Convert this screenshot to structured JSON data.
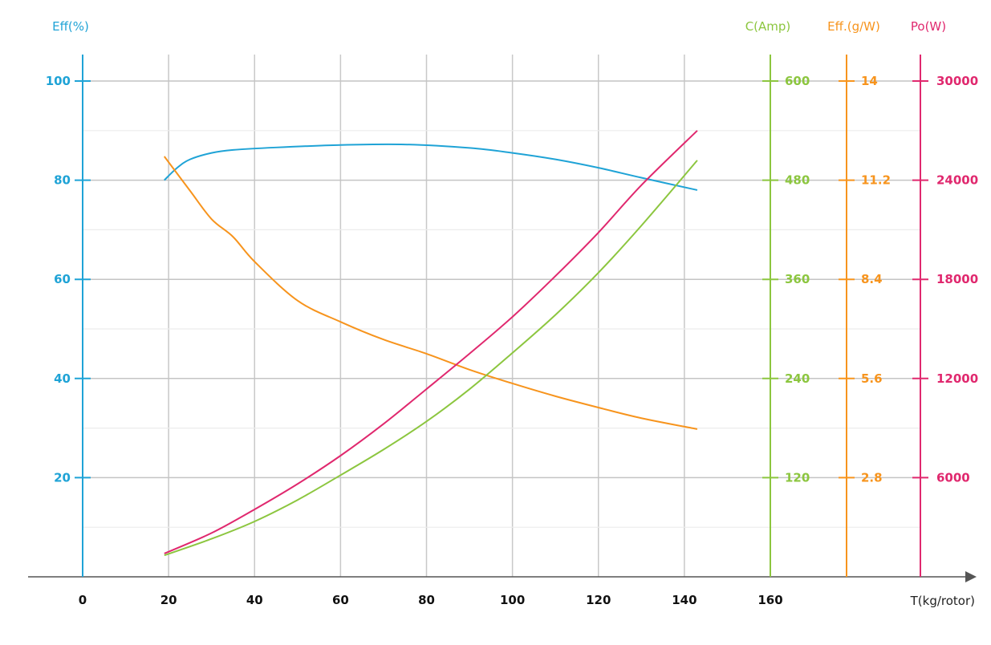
{
  "chart_data": {
    "type": "line",
    "xlabel": "T(kg/rotor)",
    "x_ticks": [
      "0",
      "20",
      "40",
      "60",
      "80",
      "100",
      "120",
      "140",
      "160"
    ],
    "xlim": [
      0,
      160
    ],
    "grid": true,
    "axes": [
      {
        "id": "eff_pct",
        "title": "Eff(%)",
        "side": "left",
        "color": "#1fa3d6",
        "ticks": [
          "20",
          "40",
          "60",
          "80",
          "100"
        ],
        "ylim": [
          0,
          100
        ]
      },
      {
        "id": "current",
        "title": "C(Amp)",
        "side": "right",
        "color": "#8cc63f",
        "ticks": [
          "120",
          "240",
          "360",
          "480",
          "600"
        ],
        "ylim": [
          0,
          600
        ]
      },
      {
        "id": "eff_gw",
        "title": "Eff.(g/W)",
        "side": "right",
        "color": "#f7941d",
        "ticks": [
          "2.8",
          "5.6",
          "8.4",
          "11.2",
          "14"
        ],
        "ylim": [
          0,
          14
        ]
      },
      {
        "id": "power",
        "title": "Po(W)",
        "side": "right",
        "color": "#e0286e",
        "ticks": [
          "6000",
          "12000",
          "18000",
          "24000",
          "30000"
        ],
        "ylim": [
          0,
          30000
        ]
      }
    ],
    "series": [
      {
        "name": "Eff(%)",
        "axis": "eff_pct",
        "color": "#1fa3d6",
        "x": [
          19,
          22,
          25,
          30,
          35,
          45,
          60,
          75,
          90,
          100,
          110,
          120,
          130,
          143
        ],
        "y": [
          80,
          82.5,
          84.2,
          85.5,
          86.1,
          86.6,
          87.1,
          87.2,
          86.5,
          85.5,
          84.2,
          82.5,
          80.5,
          78
        ]
      },
      {
        "name": "Eff.(g/W)",
        "axis": "eff_gw",
        "color": "#f7941d",
        "x": [
          19,
          25,
          30,
          35,
          40,
          50,
          60,
          70,
          80,
          90,
          100,
          110,
          120,
          130,
          143
        ],
        "y": [
          11.87,
          10.9,
          10.1,
          9.6,
          8.9,
          7.8,
          7.2,
          6.7,
          6.3,
          5.85,
          5.46,
          5.1,
          4.78,
          4.48,
          4.17
        ]
      },
      {
        "name": "C(Amp)",
        "axis": "current",
        "color": "#8cc63f",
        "x": [
          19,
          30,
          40,
          50,
          60,
          70,
          80,
          90,
          100,
          110,
          120,
          130,
          143
        ],
        "y": [
          26,
          46,
          67,
          93,
          123,
          154,
          188,
          227,
          271,
          317,
          368,
          425,
          504
        ]
      },
      {
        "name": "Po(W)",
        "axis": "power",
        "color": "#e0286e",
        "x": [
          19,
          30,
          40,
          50,
          60,
          70,
          80,
          90,
          100,
          110,
          120,
          130,
          143
        ],
        "y": [
          1410,
          2650,
          4080,
          5620,
          7330,
          9250,
          11360,
          13500,
          15730,
          18200,
          20830,
          23700,
          27000
        ]
      }
    ]
  }
}
